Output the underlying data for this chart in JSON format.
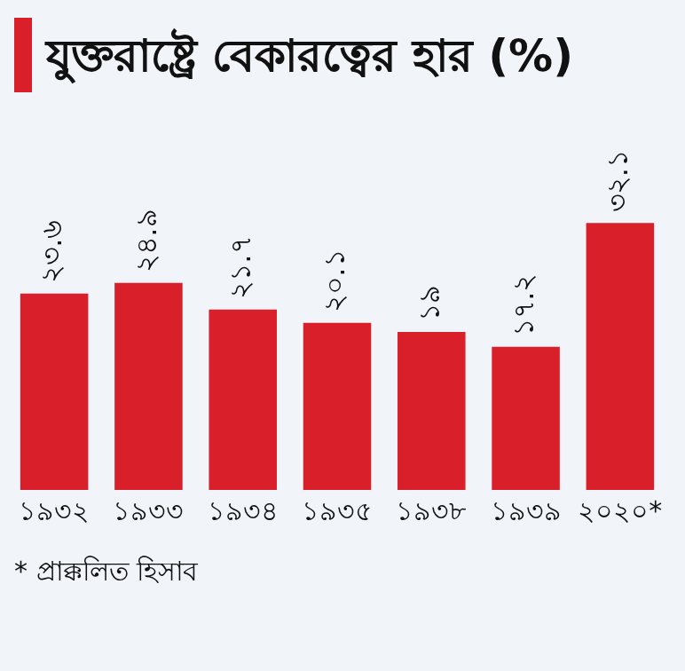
{
  "chart_data": {
    "type": "bar",
    "title": "যুক্তরাষ্ট্রে বেকারত্বের হার (%)",
    "categories": [
      "১৯৩২",
      "১৯৩৩",
      "১৯৩৪",
      "১৯৩৫",
      "১৯৩৮",
      "১৯৩৯",
      "২০২০*"
    ],
    "values": [
      23.6,
      24.9,
      21.7,
      20.1,
      19,
      17.2,
      32.1
    ],
    "value_labels": [
      "২৩.৬",
      "২৪.৯",
      "২১.৭",
      "২০.১",
      "১৯",
      "১৭.২",
      "৩২.১"
    ],
    "color": "#d81f2a",
    "grid": false,
    "legend": false,
    "tick_labels": "x",
    "annotations": [
      "* প্রাক্কলিত হিসাব"
    ]
  }
}
